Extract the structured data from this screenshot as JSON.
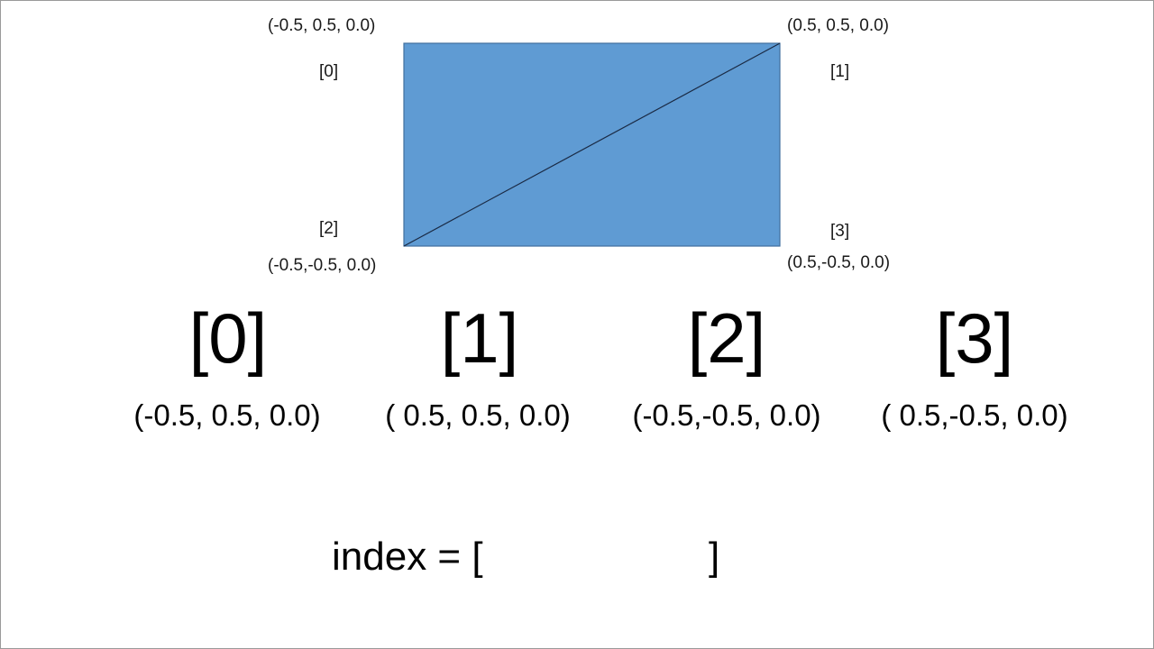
{
  "diagram": {
    "fill_color": "#5f9bd3",
    "edge_color": "#3f6f9e",
    "diagonal_color": "#1a2a44",
    "vertices": [
      {
        "index_label": "[0]",
        "coord_label": "(-0.5, 0.5, 0.0)"
      },
      {
        "index_label": "[1]",
        "coord_label": "(0.5, 0.5, 0.0)"
      },
      {
        "index_label": "[2]",
        "coord_label": "(-0.5,-0.5, 0.0)"
      },
      {
        "index_label": "[3]",
        "coord_label": "(0.5,-0.5, 0.0)"
      }
    ]
  },
  "vertex_table": [
    {
      "index": "[0]",
      "coord": "(-0.5, 0.5, 0.0)"
    },
    {
      "index": "[1]",
      "coord": "( 0.5, 0.5, 0.0)"
    },
    {
      "index": "[2]",
      "coord": "(-0.5,-0.5, 0.0)"
    },
    {
      "index": "[3]",
      "coord": "( 0.5,-0.5, 0.0)"
    }
  ],
  "index_array": {
    "prefix": "index = [",
    "suffix": "]"
  }
}
